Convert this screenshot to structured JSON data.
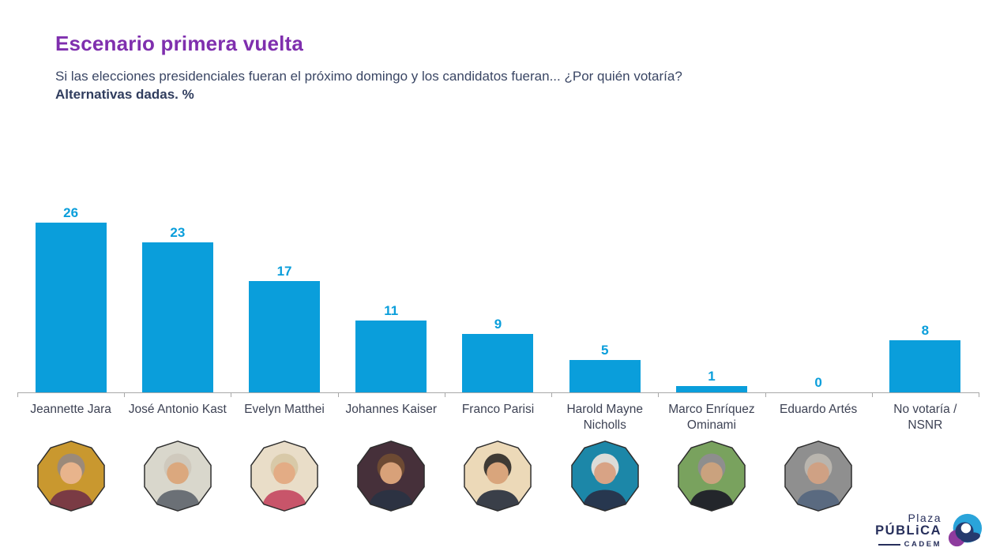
{
  "slide": {
    "title": "Escenario primera vuelta",
    "subtitle": "Si las elecciones presidenciales fueran el próximo domingo y los candidatos fueran... ¿Por quién votaría?",
    "note": "Alternativas dadas. %"
  },
  "chart_data": {
    "type": "bar",
    "title": "Escenario primera vuelta",
    "categories": [
      "Jeannette Jara",
      "José Antonio Kast",
      "Evelyn Matthei",
      "Johannes Kaiser",
      "Franco Parisi",
      "Harold Mayne Nicholls",
      "Marco Enríquez Ominami",
      "Eduardo Artés",
      "No votaría / NSNR"
    ],
    "values": [
      26,
      23,
      17,
      11,
      9,
      5,
      1,
      0,
      8
    ],
    "value_labels": [
      "26",
      "23",
      "17",
      "11",
      "9",
      "5",
      "1",
      "0",
      "8"
    ],
    "xlabel": "",
    "ylabel": "",
    "ylim": [
      0,
      28
    ],
    "grid": false,
    "legend": false,
    "bar_color": "#0a9edb",
    "value_label_color": "#0a9edb",
    "axis_color": "#a8a8a8"
  },
  "photos": [
    {
      "candidate": "Jeannette Jara",
      "bg": "#c9982f",
      "hair": "#9b8a7a",
      "skin": "#e8b48c",
      "suit": "#7a3b44"
    },
    {
      "candidate": "José Antonio Kast",
      "bg": "#d9d7cc",
      "hair": "#cfc9bd",
      "skin": "#dba87e",
      "suit": "#6b7076"
    },
    {
      "candidate": "Evelyn Matthei",
      "bg": "#e9ddc8",
      "hair": "#d8c9a8",
      "skin": "#e3ac85",
      "suit": "#c8556a"
    },
    {
      "candidate": "Johannes Kaiser",
      "bg": "#46303a",
      "hair": "#6d4a33",
      "skin": "#d8a179",
      "suit": "#2c3242"
    },
    {
      "candidate": "Franco Parisi",
      "bg": "#ecd9b8",
      "hair": "#3f3a34",
      "skin": "#d9a57c",
      "suit": "#3a3f49"
    },
    {
      "candidate": "Harold Mayne Nicholls",
      "bg": "#1c87a8",
      "hair": "#dcdcd8",
      "skin": "#d8a385",
      "suit": "#27374f"
    },
    {
      "candidate": "Marco Enríquez Ominami",
      "bg": "#79a25e",
      "hair": "#8e8e8e",
      "skin": "#caa27e",
      "suit": "#23262b"
    },
    {
      "candidate": "Eduardo Artés",
      "bg": "#8f8f8f",
      "hair": "#b9b5ae",
      "skin": "#cfa184",
      "suit": "#5a6a80"
    }
  ],
  "logo": {
    "line1": "Plaza",
    "line2": "PÚBLiCA",
    "line3": "CADEM",
    "navy": "#272f5b",
    "blue": "#2aa4da",
    "purple": "#8e3b9e"
  },
  "colors": {
    "title_purple": "#7f2fae",
    "text_navy": "#3a4664",
    "bar_blue": "#0a9edb",
    "axis_gray": "#a8a8a8"
  }
}
